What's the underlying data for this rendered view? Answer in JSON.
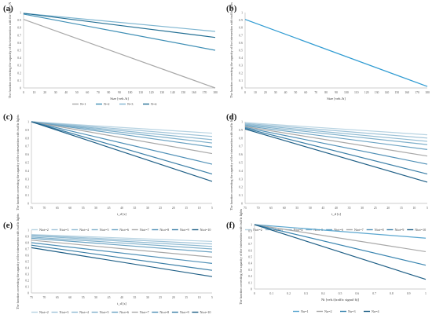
{
  "chart_data": [
    {
      "panel": "(a)",
      "type": "line",
      "xlabel": "Size [veh./h]",
      "ylabel": "The function correcting the capacity of the intersection with the Nhy = N",
      "x_ticks": [
        0,
        10,
        20,
        30,
        40,
        50,
        60,
        70,
        80,
        90,
        100,
        110,
        120,
        130,
        140,
        150,
        160,
        170,
        180
      ],
      "y_ticks": [
        0,
        0.1,
        0.2,
        0.3,
        0.4,
        0.5,
        0.6,
        0.7,
        0.8,
        0.9,
        1
      ],
      "xlim": [
        0,
        180
      ],
      "ylim": [
        0,
        1
      ],
      "legend": "bottom",
      "series": [
        {
          "name": "N=1",
          "color": "#a8a8a8",
          "x": [
            0,
            180
          ],
          "values": [
            0.91,
            0.0
          ]
        },
        {
          "name": "N=2",
          "color": "#3f8fb5",
          "x": [
            0,
            180
          ],
          "values": [
            0.98,
            0.5
          ]
        },
        {
          "name": "N=3",
          "color": "#7fb6d1",
          "x": [
            0,
            180
          ],
          "values": [
            0.99,
            0.75
          ]
        },
        {
          "name": "N=4",
          "color": "#236f94",
          "x": [
            0,
            180
          ],
          "values": [
            0.99,
            0.67
          ]
        }
      ]
    },
    {
      "panel": "(b)",
      "type": "line",
      "xlabel": "Size [veh./h]",
      "ylabel": "The function correcting the capacity of the intersection with traffic lights",
      "x_ticks": [
        0,
        10,
        20,
        30,
        40,
        50,
        60,
        70,
        80,
        90,
        100,
        110,
        120,
        130,
        140,
        150,
        160,
        170,
        180
      ],
      "y_ticks": [
        0,
        0.1,
        0.2,
        0.3,
        0.4,
        0.5,
        0.6,
        0.7,
        0.8,
        0.9,
        1
      ],
      "xlim": [
        0,
        180
      ],
      "ylim": [
        0,
        1
      ],
      "series": [
        {
          "color": "#2f9bd2",
          "x": [
            0,
            180
          ],
          "values": [
            0.91,
            0.02
          ]
        }
      ]
    },
    {
      "panel": "(c)",
      "type": "line",
      "xlabel": "t_d [s]",
      "ylabel": "The function correcting the capacity of the intersection with traffic lights",
      "x_ticks": [
        "75",
        "70",
        "65",
        "60",
        "55",
        "50",
        "45",
        "40",
        "35",
        "30",
        "25",
        "20",
        "15",
        "10",
        "5"
      ],
      "y_ticks": [
        0,
        0.1,
        0.2,
        0.3,
        0.4,
        0.5,
        0.6,
        0.7,
        0.8,
        0.9,
        1
      ],
      "ylim": [
        0,
        1
      ],
      "legend": "bottom",
      "series": [
        {
          "name": "Ntot=2",
          "color": "#b7d3e2",
          "values": [
            1.0,
            0.86
          ]
        },
        {
          "name": "Ntot=3",
          "color": "#9fc3d8",
          "values": [
            1.0,
            0.82
          ]
        },
        {
          "name": "Ntot=4",
          "color": "#8fbad2",
          "values": [
            1.0,
            0.78
          ]
        },
        {
          "name": "Ntot=5",
          "color": "#7fb0cb",
          "values": [
            1.0,
            0.74
          ]
        },
        {
          "name": "Ntot=6",
          "color": "#6aa2c2",
          "values": [
            1.0,
            0.69
          ]
        },
        {
          "name": "Ntot=7",
          "color": "#a8a8a8",
          "values": [
            1.0,
            0.61
          ]
        },
        {
          "name": "Ntot=8",
          "color": "#4e8fb6",
          "values": [
            1.0,
            0.48
          ]
        },
        {
          "name": "Ntot=9",
          "color": "#3a7ea6",
          "values": [
            1.0,
            0.36
          ]
        },
        {
          "name": "Ntot=10",
          "color": "#1f5f86",
          "values": [
            1.0,
            0.27
          ]
        }
      ]
    },
    {
      "panel": "(d)",
      "type": "line",
      "xlabel": "t_d [s]",
      "ylabel": "The function correcting the capacity of the intersection with traffic lights",
      "x_ticks": [
        "75",
        "70",
        "65",
        "60",
        "55",
        "50",
        "45",
        "40",
        "35",
        "30",
        "25",
        "20",
        "15",
        "10",
        "5"
      ],
      "y_ticks": [
        0,
        0.1,
        0.2,
        0.3,
        0.4,
        0.5,
        0.6,
        0.7,
        0.8,
        0.9,
        1
      ],
      "ylim": [
        0,
        1
      ],
      "legend": "bottom",
      "series": [
        {
          "name": "Ntot=2",
          "color": "#b7d3e2",
          "values": [
            0.99,
            0.84
          ]
        },
        {
          "name": "Ntot=3",
          "color": "#9fc3d8",
          "values": [
            0.98,
            0.8
          ]
        },
        {
          "name": "Ntot=4",
          "color": "#8fbad2",
          "values": [
            0.97,
            0.76
          ]
        },
        {
          "name": "Ntot=5",
          "color": "#7fb0cb",
          "values": [
            0.96,
            0.72
          ]
        },
        {
          "name": "Ntot=6",
          "color": "#6aa2c2",
          "values": [
            0.95,
            0.66
          ]
        },
        {
          "name": "Ntot=7",
          "color": "#a8a8a8",
          "values": [
            0.94,
            0.58
          ]
        },
        {
          "name": "Ntot=8",
          "color": "#4e8fb6",
          "values": [
            0.93,
            0.48
          ]
        },
        {
          "name": "Ntot=9",
          "color": "#3a7ea6",
          "values": [
            0.92,
            0.36
          ]
        },
        {
          "name": "Ntot=10",
          "color": "#1f5f86",
          "values": [
            0.91,
            0.26
          ]
        }
      ]
    },
    {
      "panel": "(e)",
      "type": "line",
      "xlabel": "t_d [s]",
      "ylabel": "The function correcting the capacity of the intersection with traffic lights",
      "x_ticks": [
        "75",
        "70",
        "65",
        "60",
        "55",
        "50",
        "45",
        "40",
        "35",
        "30",
        "25",
        "20",
        "15",
        "10",
        "5"
      ],
      "y_ticks": [
        0,
        0.1,
        0.2,
        0.3,
        0.4,
        0.5,
        0.6,
        0.7,
        0.8,
        0.9,
        1
      ],
      "ylim": [
        0,
        1
      ],
      "legend": "bottom",
      "series": [
        {
          "name": "Ntot=2",
          "color": "#b7d3e2",
          "values": [
            0.93,
            0.82
          ]
        },
        {
          "name": "Ntot=3",
          "color": "#9fc3d8",
          "values": [
            0.92,
            0.78
          ]
        },
        {
          "name": "Ntot=4",
          "color": "#8fbad2",
          "values": [
            0.91,
            0.74
          ]
        },
        {
          "name": "Ntot=5",
          "color": "#7fb0cb",
          "values": [
            0.89,
            0.7
          ]
        },
        {
          "name": "Ntot=6",
          "color": "#6aa2c2",
          "values": [
            0.87,
            0.65
          ]
        },
        {
          "name": "Ntot=7",
          "color": "#a8a8a8",
          "values": [
            0.84,
            0.57
          ]
        },
        {
          "name": "Ntot=8",
          "color": "#4e8fb6",
          "values": [
            0.8,
            0.47
          ]
        },
        {
          "name": "Ntot=9",
          "color": "#3a7ea6",
          "values": [
            0.76,
            0.36
          ]
        },
        {
          "name": "Ntot=10",
          "color": "#1f5f86",
          "values": [
            0.72,
            0.26
          ]
        }
      ]
    },
    {
      "panel": "(f)",
      "type": "line",
      "xlabel": "Nt [veh./(traffic signal·h)]",
      "ylabel": "The function correcting the capacity of the intersection with traffic lights",
      "x_ticks": [
        "0",
        "0.1",
        "0.2",
        "0.3",
        "0.4",
        "0.5",
        "0.6",
        "0.7",
        "0.8",
        "0.9",
        "1"
      ],
      "y_ticks": [
        0,
        0.1,
        0.2,
        0.3,
        0.4,
        0.5,
        0.6,
        0.7,
        0.8,
        0.9,
        1
      ],
      "ylim": [
        0,
        1
      ],
      "legend": "bottom",
      "series": [
        {
          "name": "Nu=1",
          "color": "#5aa6cf",
          "values": [
            1.0,
            0.79
          ]
        },
        {
          "name": "Nu=2",
          "color": "#a8a8a8",
          "values": [
            1.0,
            0.58
          ]
        },
        {
          "name": "Nu=3",
          "color": "#3a85b0",
          "values": [
            1.0,
            0.37
          ]
        },
        {
          "name": "Nu=4",
          "color": "#1f5f86",
          "values": [
            1.0,
            0.15
          ]
        }
      ]
    }
  ]
}
